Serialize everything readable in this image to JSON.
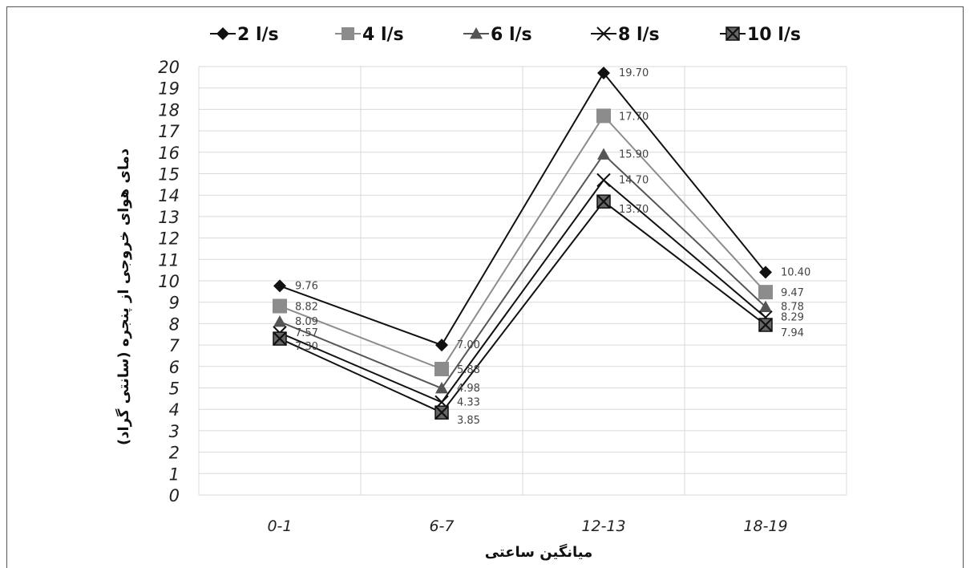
{
  "chart_data": {
    "type": "line",
    "categories": [
      "0-1",
      "6-7",
      "12-13",
      "18-19"
    ],
    "series": [
      {
        "name": "2 l/s",
        "values": [
          9.76,
          7.0,
          19.7,
          10.4
        ],
        "labels": [
          "9.76",
          "7.00",
          "19.70",
          "10.40"
        ],
        "marker": "diamond",
        "color": "#111111"
      },
      {
        "name": "4 l/s",
        "values": [
          8.82,
          5.88,
          17.7,
          9.47
        ],
        "labels": [
          "8.82",
          "5.88",
          "17.70",
          "9.47"
        ],
        "marker": "square",
        "color": "#8c8c8c"
      },
      {
        "name": "6 l/s",
        "values": [
          8.09,
          4.98,
          15.9,
          8.78
        ],
        "labels": [
          "8.09",
          "4.98",
          "15.90",
          "8.78"
        ],
        "marker": "triangle",
        "color": "#555555"
      },
      {
        "name": "8 l/s",
        "values": [
          7.57,
          4.33,
          14.7,
          8.29
        ],
        "labels": [
          "7.57",
          "4.33",
          "14.70",
          "8.29"
        ],
        "marker": "x",
        "color": "#111111"
      },
      {
        "name": "10 l/s",
        "values": [
          7.3,
          3.85,
          13.7,
          7.94
        ],
        "labels": [
          "7.30",
          "3.85",
          "13.70",
          "7.94"
        ],
        "marker": "boxx",
        "color": "#111111"
      }
    ],
    "yticks": [
      "0",
      "1",
      "2",
      "3",
      "4",
      "5",
      "6",
      "7",
      "8",
      "9",
      "10",
      "11",
      "12",
      "13",
      "14",
      "15",
      "16",
      "17",
      "18",
      "19",
      "20"
    ],
    "ylim": [
      0,
      20
    ],
    "xlabel": "میانگین ساعتی",
    "ylabel": "دمای هوای خروجی از پنجره (سانتی گراد)",
    "grid": true,
    "legend_position": "top"
  }
}
